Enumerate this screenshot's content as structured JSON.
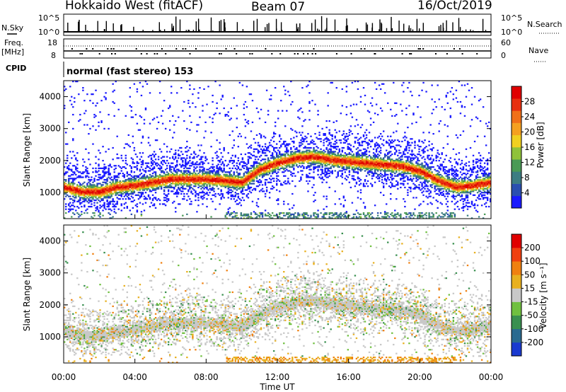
{
  "header": {
    "station": "Hokkaido West (fitACF)",
    "beam": "Beam 07",
    "date": "16/Oct/2019"
  },
  "side_labels": {
    "nsky": "N.Sky",
    "nsearch": "N.Search",
    "freq": "Freq.",
    "freq_unit": "[MHz]",
    "nave": "Nave",
    "cpid": "CPID",
    "noise_top": "10^5",
    "noise_bottom": "10^0",
    "freq_top": "18",
    "freq_bottom": "8",
    "nave_top": "60",
    "nave_bottom": "0"
  },
  "cpid_text": "normal (fast stereo) 153",
  "chart_data": [
    {
      "type": "heatmap",
      "title": "",
      "xlabel": "Time UT",
      "ylabel": "Slant Range [km]",
      "x_ticks": [
        "00:00",
        "04:00",
        "08:00",
        "12:00",
        "16:00",
        "20:00",
        "00:00"
      ],
      "y_ticks": [
        1000,
        2000,
        3000,
        4000
      ],
      "ylim": [
        180,
        4500
      ],
      "colorbar": {
        "label": "Power [dB]",
        "ticks": [
          4,
          8,
          12,
          16,
          20,
          24,
          28
        ],
        "colors": [
          "#1a1aff",
          "#2a4fb0",
          "#3d7d82",
          "#4a9a55",
          "#8fc23a",
          "#f0d020",
          "#f5a020",
          "#f07018",
          "#e83010",
          "#e00000"
        ]
      },
      "band_center_km": [
        [
          0,
          1150
        ],
        [
          1,
          1000
        ],
        [
          2,
          1000
        ],
        [
          3,
          1150
        ],
        [
          4,
          1200
        ],
        [
          5,
          1300
        ],
        [
          6,
          1400
        ],
        [
          7,
          1400
        ],
        [
          8,
          1400
        ],
        [
          9,
          1350
        ],
        [
          10,
          1300
        ],
        [
          11,
          1700
        ],
        [
          12,
          1900
        ],
        [
          13,
          2050
        ],
        [
          14,
          2100
        ],
        [
          15,
          2000
        ],
        [
          16,
          1950
        ],
        [
          17,
          1900
        ],
        [
          18,
          1850
        ],
        [
          19,
          1800
        ],
        [
          20,
          1650
        ],
        [
          21,
          1350
        ],
        [
          22,
          1150
        ],
        [
          23,
          1200
        ],
        [
          24,
          1300
        ]
      ]
    },
    {
      "type": "heatmap",
      "title": "",
      "xlabel": "Time UT",
      "ylabel": "Slant Range [km]",
      "x_ticks": [
        "00:00",
        "04:00",
        "08:00",
        "12:00",
        "16:00",
        "20:00",
        "00:00"
      ],
      "y_ticks": [
        1000,
        2000,
        3000,
        4000
      ],
      "ylim": [
        180,
        4500
      ],
      "colorbar": {
        "label": "Velocity [m s⁻¹]",
        "ticks": [
          200,
          100,
          50,
          15,
          -15,
          -50,
          -100,
          -200
        ],
        "colors": [
          "#1a3ad0",
          "#2a6a90",
          "#3a9050",
          "#70c040",
          "#c8c8c8",
          "#e8b020",
          "#f08010",
          "#f04010",
          "#e00000"
        ]
      }
    }
  ]
}
